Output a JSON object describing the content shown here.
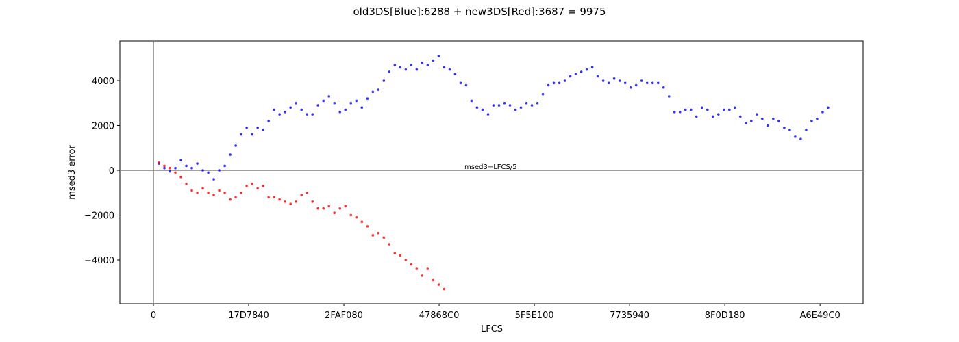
{
  "chart_data": {
    "type": "scatter",
    "title": "old3DS[Blue]:6288 + new3DS[Red]:3687 = 9975",
    "x_label": "LFCS",
    "y_label": "msed3 error",
    "annotation": "msed3=LFCS/5",
    "hline": 0,
    "vline": 0,
    "xlim": [
      -8810000,
      186300000
    ],
    "ylim": [
      -5954,
      5771
    ],
    "xticks": [
      0,
      {
        "value": 25000000,
        "label": "17D7840"
      },
      {
        "value": 50000000,
        "label": "2FAF080"
      },
      {
        "value": 75000000,
        "label": "47868C0"
      },
      {
        "value": 100000000,
        "label": "5F5E100"
      },
      {
        "value": 125000000,
        "label": "7735940"
      },
      {
        "value": 150000000,
        "label": "8F0D180"
      },
      {
        "value": 175000000,
        "label": "A6E49C0"
      }
    ],
    "yticks": [
      {
        "value": -4000,
        "label": "−4000"
      },
      {
        "value": -2000,
        "label": "−2000"
      },
      0,
      2000,
      4000
    ],
    "series": [
      {
        "name": "old3DS",
        "color": "#0000ff",
        "x": [
          1440000,
          2880000,
          4320000,
          5760000,
          7200000,
          8640000,
          10080000,
          11520000,
          12960000,
          14400000,
          15840000,
          17280000,
          18720000,
          20160000,
          21600000,
          23040000,
          24480000,
          25920000,
          27360000,
          28800000,
          30240000,
          31680000,
          33120000,
          34560000,
          36000000,
          37440000,
          38880000,
          40320000,
          41760000,
          43200000,
          44640000,
          46080000,
          47520000,
          48960000,
          50400000,
          51840000,
          53280000,
          54720000,
          56160000,
          57600000,
          59040000,
          60480000,
          61920000,
          63360000,
          64800000,
          66240000,
          67680000,
          69120000,
          70560000,
          72000000,
          73440000,
          74880000,
          76320000,
          77760000,
          79200000,
          80640000,
          82080000,
          83520000,
          84960000,
          86400000,
          87840000,
          89280000,
          90720000,
          92160000,
          93600000,
          95040000,
          96480000,
          97920000,
          99360000,
          100800000,
          102240000,
          103680000,
          105120000,
          106560000,
          108000000,
          109440000,
          110880000,
          112320000,
          113760000,
          115200000,
          116640000,
          118080000,
          119520000,
          120960000,
          122400000,
          123840000,
          125280000,
          126720000,
          128160000,
          129600000,
          131040000,
          132480000,
          133920000,
          135360000,
          136800000,
          138240000,
          139680000,
          141120000,
          142560000,
          144000000,
          145440000,
          146880000,
          148320000,
          149760000,
          151200000,
          152640000,
          154080000,
          155520000,
          156960000,
          158400000,
          159840000,
          161280000,
          162720000,
          164160000,
          165600000,
          167040000,
          168480000,
          169920000,
          171360000,
          172800000,
          174240000,
          175680000,
          177120000
        ],
        "values": [
          300,
          100,
          -50,
          100,
          450,
          200,
          100,
          300,
          0,
          -100,
          -400,
          0,
          200,
          700,
          1100,
          1600,
          1900,
          1600,
          1900,
          1800,
          2200,
          2700,
          2500,
          2600,
          2800,
          3000,
          2700,
          2500,
          2500,
          2900,
          3100,
          3300,
          3000,
          2600,
          2700,
          3000,
          3100,
          2800,
          3200,
          3500,
          3600,
          4000,
          4400,
          4700,
          4600,
          4500,
          4700,
          4500,
          4800,
          4700,
          4900,
          5100,
          4600,
          4500,
          4300,
          3900,
          3800,
          3100,
          2800,
          2700,
          2500,
          2900,
          2900,
          3000,
          2900,
          2700,
          2800,
          3000,
          2900,
          3000,
          3400,
          3800,
          3900,
          3900,
          4000,
          4200,
          4300,
          4400,
          4500,
          4600,
          4200,
          4000,
          3900,
          4100,
          4000,
          3900,
          3700,
          3800,
          4000,
          3900,
          3900,
          3900,
          3700,
          3300,
          2600,
          2600,
          2700,
          2700,
          2400,
          2800,
          2700,
          2400,
          2500,
          2700,
          2700,
          2800,
          2400,
          2100,
          2200,
          2500,
          2300,
          2000,
          2300,
          2200,
          1900,
          1800,
          1500,
          1400,
          1800,
          2200,
          2300,
          2600,
          2800
        ]
      },
      {
        "name": "new3DS",
        "color": "#ff0000",
        "x": [
          1440000,
          2880000,
          4320000,
          5760000,
          7200000,
          8640000,
          10080000,
          11520000,
          12960000,
          14400000,
          15840000,
          17280000,
          18720000,
          20160000,
          21600000,
          23040000,
          24480000,
          25920000,
          27360000,
          28800000,
          30240000,
          31680000,
          33120000,
          34560000,
          36000000,
          37440000,
          38880000,
          40320000,
          41760000,
          43200000,
          44640000,
          46080000,
          47520000,
          48960000,
          50400000,
          51840000,
          53280000,
          54720000,
          56160000,
          57600000,
          59040000,
          60480000,
          61920000,
          63360000,
          64800000,
          66240000,
          67680000,
          69120000,
          70560000,
          72000000,
          73440000,
          74880000,
          76320000
        ],
        "values": [
          350,
          200,
          100,
          -100,
          -300,
          -600,
          -900,
          -1000,
          -800,
          -1000,
          -1100,
          -900,
          -1000,
          -1300,
          -1200,
          -1000,
          -700,
          -600,
          -800,
          -700,
          -1200,
          -1200,
          -1300,
          -1400,
          -1500,
          -1400,
          -1100,
          -1000,
          -1400,
          -1700,
          -1700,
          -1600,
          -1900,
          -1700,
          -1600,
          -2000,
          -2100,
          -2300,
          -2500,
          -2900,
          -2800,
          -3000,
          -3300,
          -3700,
          -3800,
          -4000,
          -4200,
          -4400,
          -4700,
          -4400,
          -4900,
          -5100,
          -5300
        ]
      }
    ]
  }
}
